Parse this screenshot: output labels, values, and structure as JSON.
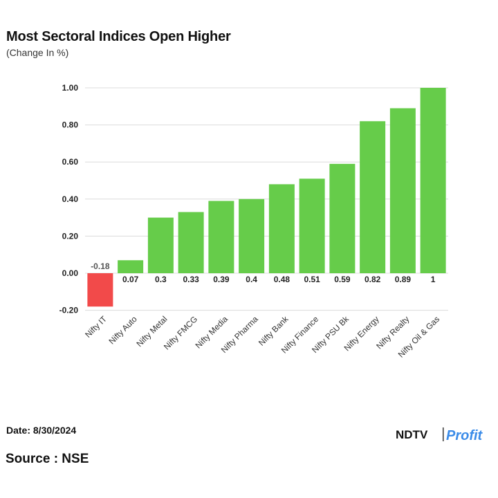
{
  "header": {
    "title": "Most Sectoral Indices Open Higher",
    "subtitle": "(Change In %)"
  },
  "footer": {
    "date": "Date: 8/30/2024",
    "source": "Source : NSE",
    "logo_text_1": "NDTV",
    "logo_text_2": "Profit"
  },
  "colors": {
    "positive": "#66cc4a",
    "negative": "#f24a4a",
    "grid": "#dcdcdc",
    "logo_accent": "#3a8be8"
  },
  "chart_data": {
    "type": "bar",
    "categories": [
      "Nifty IT",
      "Nifty Auto",
      "Nifty Metal",
      "Nifty FMCG",
      "Nifty Media",
      "Nifty Pharma",
      "Nifty Bank",
      "Nifty Finance",
      "Nifty PSU Bk",
      "Nifty Energy",
      "Nifty Realty",
      "Nifty Oil & Gas"
    ],
    "values": [
      -0.18,
      0.07,
      0.3,
      0.33,
      0.39,
      0.4,
      0.48,
      0.51,
      0.59,
      0.82,
      0.89,
      1
    ],
    "data_labels": [
      "-0.18",
      "0.07",
      "0.3",
      "0.33",
      "0.39",
      "0.4",
      "0.48",
      "0.51",
      "0.59",
      "0.82",
      "0.89",
      "1"
    ],
    "yticks": [
      "1.00",
      "0.80",
      "0.60",
      "0.40",
      "0.20",
      "0.00",
      "-0.20"
    ],
    "ytick_values": [
      1.0,
      0.8,
      0.6,
      0.4,
      0.2,
      0.0,
      -0.2
    ],
    "ylim": [
      -0.2,
      1.0
    ],
    "grid": true,
    "legend": "none"
  }
}
